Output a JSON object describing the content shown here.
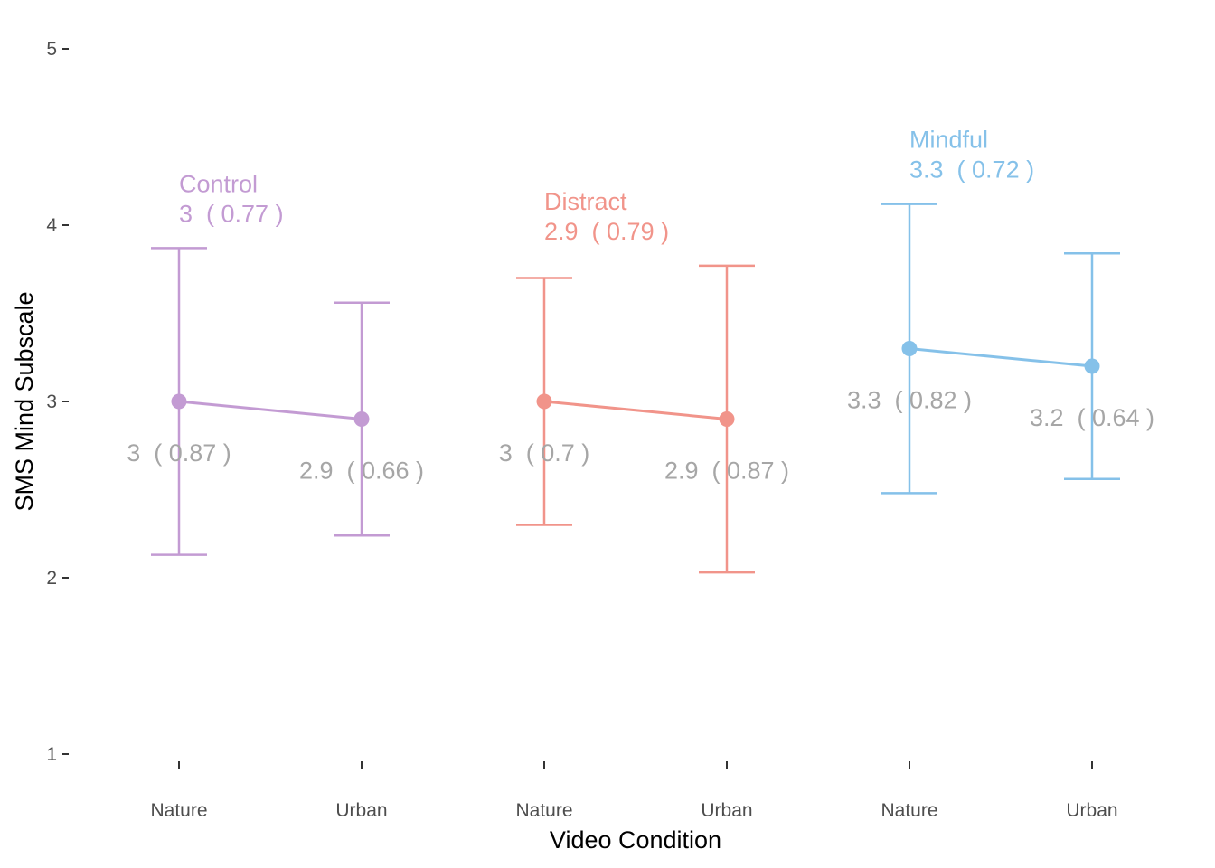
{
  "chart_data": {
    "type": "errorbar",
    "xlabel": "Video Condition",
    "ylabel": "SMS Mind Subscale",
    "ylim": [
      1,
      5
    ],
    "yticks": [
      1,
      2,
      3,
      4,
      5
    ],
    "grid": false,
    "legend": "none",
    "groups": [
      {
        "name": "Control",
        "color": "#c39bd3",
        "summary": "3  ( 0.77 )",
        "points": [
          {
            "category": "Nature",
            "mean": 3.0,
            "lower": 2.13,
            "upper": 3.87,
            "label": "3  ( 0.87 )"
          },
          {
            "category": "Urban",
            "mean": 2.9,
            "lower": 2.24,
            "upper": 3.56,
            "label": "2.9  ( 0.66 )"
          }
        ]
      },
      {
        "name": "Distract",
        "color": "#f1948a",
        "summary": "2.9  ( 0.79 )",
        "points": [
          {
            "category": "Nature",
            "mean": 3.0,
            "lower": 2.3,
            "upper": 3.7,
            "label": "3  ( 0.7 )"
          },
          {
            "category": "Urban",
            "mean": 2.9,
            "lower": 2.03,
            "upper": 3.77,
            "label": "2.9  ( 0.87 )"
          }
        ]
      },
      {
        "name": "Mindful",
        "color": "#85c1e9",
        "summary": "3.3  ( 0.72 )",
        "points": [
          {
            "category": "Nature",
            "mean": 3.3,
            "lower": 2.48,
            "upper": 4.12,
            "label": "3.3  ( 0.82 )"
          },
          {
            "category": "Urban",
            "mean": 3.2,
            "lower": 2.56,
            "upper": 3.84,
            "label": "3.2  ( 0.64 )"
          }
        ]
      }
    ]
  }
}
